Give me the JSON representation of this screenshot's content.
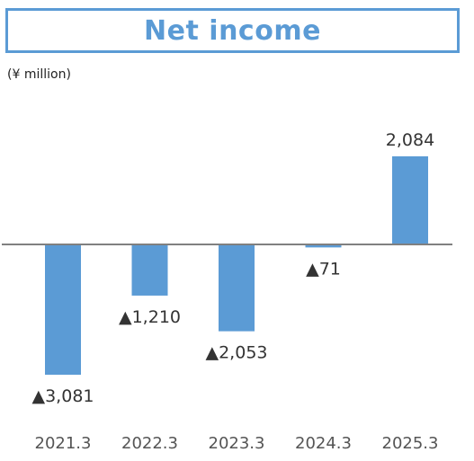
{
  "title": "Net income",
  "unit": "(¥ million)",
  "colors": {
    "bar": "#5b9bd5",
    "baseline": "#808080",
    "title": "#5b9bd5"
  },
  "chart_data": {
    "type": "bar",
    "title": "Net income",
    "categories": [
      "2021.3",
      "2022.3",
      "2023.3",
      "2024.3",
      "2025.3"
    ],
    "values": [
      -3081,
      -1210,
      -2053,
      -71,
      2084
    ],
    "data_labels": [
      "▲3,081",
      "▲1,210",
      "▲2,053",
      "▲71",
      "2,084"
    ],
    "ylabel": "(¥ million)",
    "xlabel": "",
    "ylim": [
      -3100,
      2100
    ],
    "grid": false,
    "legend": "none"
  }
}
